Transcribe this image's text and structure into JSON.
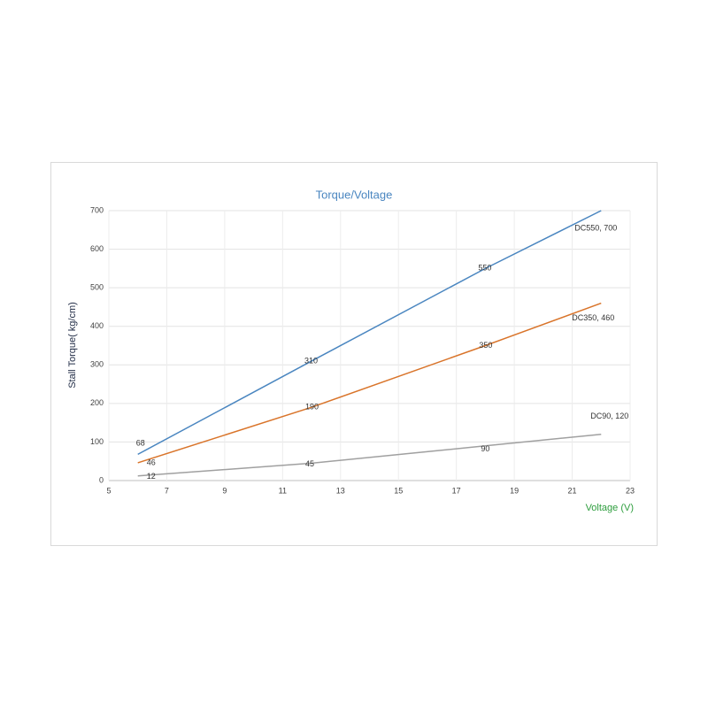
{
  "chart_data": {
    "type": "line",
    "title": "Torque/Voltage",
    "x_label": "Voltage (V)",
    "y_label": "Stall  Torque( kg/cm)",
    "x": [
      6,
      12,
      18,
      22
    ],
    "series": [
      {
        "color": "#4a86c0",
        "values": [
          68,
          310,
          550,
          700
        ],
        "value_labels": [
          "68",
          "310",
          "550",
          "DC550, 700"
        ]
      },
      {
        "color": "#d9742a",
        "values": [
          46,
          190,
          350,
          460
        ],
        "value_labels": [
          "46",
          "190",
          "350",
          "DC350, 460"
        ]
      },
      {
        "color": "#a0a0a0",
        "values": [
          12,
          45,
          90,
          120
        ],
        "value_labels": [
          "12",
          "45",
          "90",
          "DC90, 120"
        ]
      }
    ],
    "xlim": [
      5,
      23
    ],
    "xticks": [
      5,
      7,
      9,
      11,
      13,
      15,
      17,
      19,
      21,
      23
    ],
    "ylim": [
      0,
      700
    ],
    "yticks": [
      0,
      100,
      200,
      300,
      400,
      500,
      600,
      700
    ],
    "grid": true
  }
}
